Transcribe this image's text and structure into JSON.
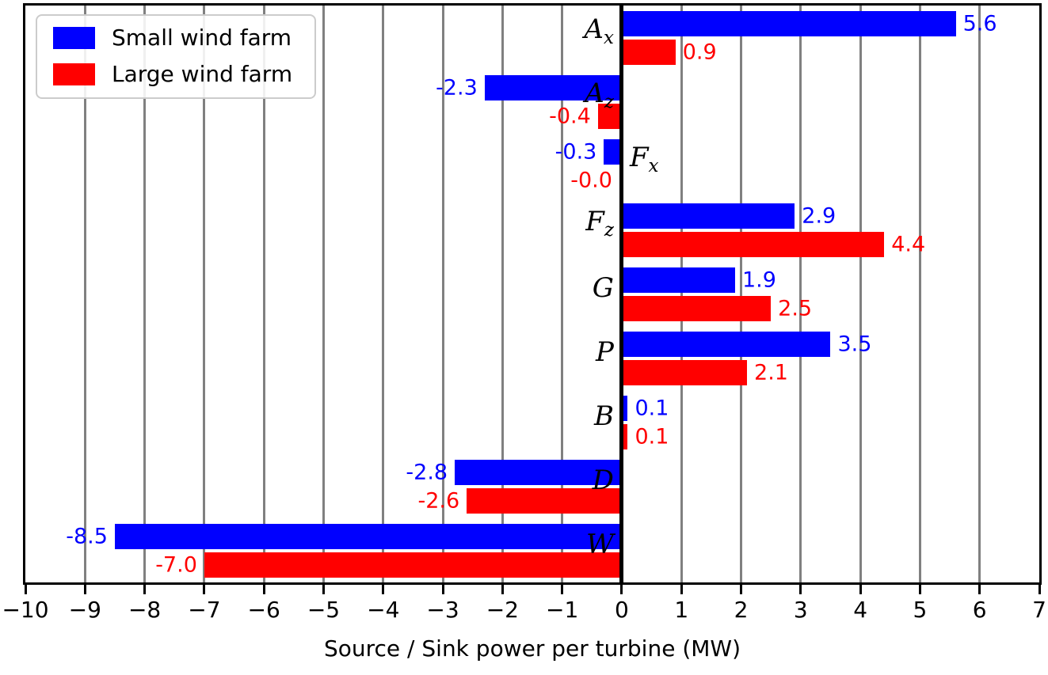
{
  "legend": {
    "items": [
      {
        "label": "Small wind farm",
        "color": "#0000ff"
      },
      {
        "label": "Large wind farm",
        "color": "#ff0000"
      }
    ]
  },
  "chart_data": {
    "type": "bar",
    "orientation": "horizontal",
    "title": "",
    "xlabel": "Source / Sink power per turbine (MW)",
    "ylabel": "",
    "xlim": [
      -10,
      7
    ],
    "xticks": [
      -10,
      -9,
      -8,
      -7,
      -6,
      -5,
      -4,
      -3,
      -2,
      -1,
      0,
      1,
      2,
      3,
      4,
      5,
      6,
      7
    ],
    "xtick_labels": [
      "−10",
      "−9",
      "−8",
      "−7",
      "−6",
      "−5",
      "−4",
      "−3",
      "−2",
      "−1",
      "0",
      "1",
      "2",
      "3",
      "4",
      "5",
      "6",
      "7"
    ],
    "grid": true,
    "grid_color": "#808080",
    "zero_line_color": "#000000",
    "legend_position": "upper left",
    "categories": [
      {
        "letter": "A",
        "sub": "x",
        "label_side": "left"
      },
      {
        "letter": "A",
        "sub": "z",
        "label_side": "left"
      },
      {
        "letter": "F",
        "sub": "x",
        "label_side": "right"
      },
      {
        "letter": "F",
        "sub": "z",
        "label_side": "left"
      },
      {
        "letter": "G",
        "sub": "",
        "label_side": "left"
      },
      {
        "letter": "P",
        "sub": "",
        "label_side": "left"
      },
      {
        "letter": "B",
        "sub": "",
        "label_side": "left"
      },
      {
        "letter": "D",
        "sub": "",
        "label_side": "left"
      },
      {
        "letter": "W",
        "sub": "",
        "label_side": "left"
      }
    ],
    "series": [
      {
        "name": "Small wind farm",
        "color": "#0000ff",
        "values": [
          5.6,
          -2.3,
          -0.3,
          2.9,
          1.9,
          3.5,
          0.1,
          -2.8,
          -8.5
        ],
        "value_labels": [
          "5.6",
          "-2.3",
          "-0.3",
          "2.9",
          "1.9",
          "3.5",
          "0.1",
          "-2.8",
          "-8.5"
        ]
      },
      {
        "name": "Large wind farm",
        "color": "#ff0000",
        "values": [
          0.9,
          -0.4,
          -0.0,
          4.4,
          2.5,
          2.1,
          0.1,
          -2.6,
          -7.0
        ],
        "value_labels": [
          "0.9",
          "-0.4",
          "-0.0",
          "4.4",
          "2.5",
          "2.1",
          "0.1",
          "-2.6",
          "-7.0"
        ]
      }
    ]
  }
}
